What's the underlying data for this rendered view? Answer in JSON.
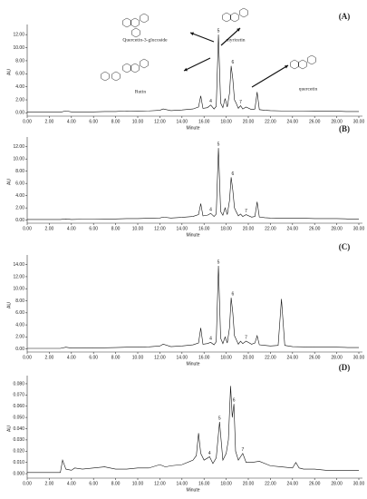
{
  "chart_data": [
    {
      "type": "line",
      "label": "(A)",
      "x_label": "Minute",
      "y_label": "AU",
      "color": "#111111",
      "xlim": [
        0,
        30
      ],
      "ylim": [
        -0.5,
        13
      ],
      "xticks": [
        {
          "value": 0,
          "label": "0.00"
        },
        {
          "value": 2,
          "label": "2.00"
        },
        {
          "value": 4,
          "label": "4.00"
        },
        {
          "value": 6,
          "label": "6.00"
        },
        {
          "value": 8,
          "label": "8.00"
        },
        {
          "value": 10,
          "label": "10.00"
        },
        {
          "value": 12,
          "label": "12.00"
        },
        {
          "value": 14,
          "label": "14.00"
        },
        {
          "value": 16,
          "label": "16.00"
        },
        {
          "value": 18,
          "label": "18.00"
        },
        {
          "value": 20,
          "label": "20.00"
        },
        {
          "value": 22,
          "label": "22.00"
        },
        {
          "value": 24,
          "label": "24.00"
        },
        {
          "value": 26,
          "label": "26.00"
        },
        {
          "value": 28,
          "label": "28.00"
        },
        {
          "value": 30,
          "label": "30.00"
        }
      ],
      "yticks": [
        {
          "value": 0,
          "label": "0.00"
        },
        {
          "value": 2,
          "label": "2.00"
        },
        {
          "value": 4,
          "label": "4.00"
        },
        {
          "value": 6,
          "label": "6.00"
        },
        {
          "value": 8,
          "label": "8.00"
        },
        {
          "value": 10,
          "label": "10.00"
        },
        {
          "value": 12,
          "label": "12.00"
        }
      ],
      "x": [
        0,
        1,
        2,
        3,
        3.5,
        4,
        5,
        6,
        7,
        8,
        9,
        10,
        11,
        12,
        12.3,
        13,
        14,
        15,
        15.5,
        15.7,
        15.9,
        16.3,
        16.6,
        16.9,
        17.1,
        17.3,
        17.5,
        17.7,
        17.9,
        18.1,
        18.3,
        18.45,
        18.6,
        18.75,
        18.9,
        19.1,
        19.3,
        19.5,
        19.8,
        20.3,
        20.6,
        20.8,
        21.0,
        21.5,
        22,
        23,
        24,
        25,
        26,
        27,
        28,
        29,
        30
      ],
      "values": [
        0.1,
        0.1,
        0.1,
        0.1,
        0.3,
        0.15,
        0.15,
        0.15,
        0.2,
        0.2,
        0.3,
        0.25,
        0.3,
        0.4,
        0.6,
        0.35,
        0.45,
        0.6,
        0.9,
        2.6,
        0.7,
        0.8,
        1.2,
        0.6,
        1.0,
        12.0,
        1.5,
        0.8,
        2.2,
        0.9,
        3.0,
        7.2,
        5.2,
        2.0,
        1.5,
        0.7,
        1.1,
        0.6,
        0.9,
        0.5,
        0.6,
        3.2,
        0.5,
        0.4,
        0.35,
        0.3,
        0.3,
        0.3,
        0.25,
        0.25,
        0.25,
        0.2,
        0.2
      ],
      "peak_labels": [
        {
          "label": "4",
          "x": 16.6
        },
        {
          "label": "5",
          "x": 17.3
        },
        {
          "label": "6",
          "x": 18.6
        },
        {
          "label": "7",
          "x": 19.3
        }
      ],
      "annotations": [
        "Quercetin-3-glucoside",
        "myricetin",
        "Rutin",
        "quercetin"
      ]
    },
    {
      "type": "line",
      "label": "(B)",
      "x_label": "Minute",
      "y_label": "AU",
      "color": "#111111",
      "xlim": [
        0,
        30
      ],
      "ylim": [
        -0.5,
        13
      ],
      "xticks": [
        {
          "value": 0,
          "label": "0.00"
        },
        {
          "value": 2,
          "label": "2.00"
        },
        {
          "value": 4,
          "label": "4.00"
        },
        {
          "value": 6,
          "label": "6.00"
        },
        {
          "value": 8,
          "label": "8.00"
        },
        {
          "value": 10,
          "label": "10.00"
        },
        {
          "value": 12,
          "label": "12.00"
        },
        {
          "value": 14,
          "label": "14.00"
        },
        {
          "value": 16,
          "label": "16.00"
        },
        {
          "value": 18,
          "label": "18.00"
        },
        {
          "value": 20,
          "label": "20.00"
        },
        {
          "value": 22,
          "label": "22.00"
        },
        {
          "value": 24,
          "label": "24.00"
        },
        {
          "value": 26,
          "label": "26.00"
        },
        {
          "value": 28,
          "label": "28.00"
        },
        {
          "value": 30,
          "label": "30.00"
        }
      ],
      "yticks": [
        {
          "value": 0,
          "label": "0.00"
        },
        {
          "value": 2,
          "label": "2.00"
        },
        {
          "value": 4,
          "label": "4.00"
        },
        {
          "value": 6,
          "label": "6.00"
        },
        {
          "value": 8,
          "label": "8.00"
        },
        {
          "value": 10,
          "label": "10.00"
        },
        {
          "value": 12,
          "label": "12.00"
        }
      ],
      "x": [
        0,
        1,
        2,
        3,
        3.5,
        4,
        5,
        6,
        7,
        8,
        9,
        10,
        11,
        12,
        12.3,
        13,
        14,
        15,
        15.5,
        15.7,
        15.9,
        16.3,
        16.6,
        16.9,
        17.1,
        17.3,
        17.5,
        17.7,
        17.9,
        18.1,
        18.3,
        18.45,
        18.6,
        18.75,
        18.9,
        19.1,
        19.3,
        19.5,
        19.8,
        20.3,
        20.6,
        20.8,
        21.0,
        21.5,
        22,
        23,
        24,
        25,
        26,
        27,
        28,
        29,
        30
      ],
      "values": [
        0.1,
        0.1,
        0.1,
        0.1,
        0.2,
        0.1,
        0.15,
        0.15,
        0.2,
        0.2,
        0.25,
        0.25,
        0.3,
        0.35,
        0.5,
        0.35,
        0.45,
        0.6,
        0.9,
        2.7,
        0.7,
        0.8,
        1.1,
        0.6,
        1.0,
        11.8,
        1.4,
        0.8,
        2.0,
        0.9,
        3.2,
        7.0,
        4.9,
        2.0,
        1.4,
        0.7,
        1.0,
        0.6,
        0.9,
        0.5,
        0.6,
        3.0,
        0.5,
        0.4,
        0.35,
        0.3,
        0.3,
        0.3,
        0.25,
        0.25,
        0.25,
        0.2,
        0.2
      ],
      "peak_labels": [
        {
          "label": "4",
          "x": 16.6
        },
        {
          "label": "5",
          "x": 17.3
        },
        {
          "label": "6",
          "x": 18.6
        },
        {
          "label": "7",
          "x": 19.8
        }
      ]
    },
    {
      "type": "line",
      "label": "(C)",
      "x_label": "Minute",
      "y_label": "AU",
      "color": "#111111",
      "xlim": [
        0,
        30
      ],
      "ylim": [
        -0.5,
        15
      ],
      "xticks": [
        {
          "value": 0,
          "label": "0.00"
        },
        {
          "value": 2,
          "label": "2.00"
        },
        {
          "value": 4,
          "label": "4.00"
        },
        {
          "value": 6,
          "label": "6.00"
        },
        {
          "value": 8,
          "label": "8.00"
        },
        {
          "value": 10,
          "label": "10.00"
        },
        {
          "value": 12,
          "label": "12.00"
        },
        {
          "value": 14,
          "label": "14.00"
        },
        {
          "value": 16,
          "label": "16.00"
        },
        {
          "value": 18,
          "label": "18.00"
        },
        {
          "value": 20,
          "label": "20.00"
        },
        {
          "value": 22,
          "label": "22.00"
        },
        {
          "value": 24,
          "label": "24.00"
        },
        {
          "value": 26,
          "label": "26.00"
        },
        {
          "value": 28,
          "label": "28.00"
        },
        {
          "value": 30,
          "label": "30.00"
        }
      ],
      "yticks": [
        {
          "value": 0,
          "label": "0.00"
        },
        {
          "value": 2,
          "label": "2.00"
        },
        {
          "value": 4,
          "label": "4.00"
        },
        {
          "value": 6,
          "label": "6.00"
        },
        {
          "value": 8,
          "label": "8.00"
        },
        {
          "value": 10,
          "label": "10.00"
        },
        {
          "value": 12,
          "label": "12.00"
        },
        {
          "value": 14,
          "label": "14.00"
        }
      ],
      "x": [
        0,
        1,
        2,
        3,
        3.5,
        4,
        5,
        6,
        7,
        8,
        9,
        10,
        11,
        12,
        12.3,
        13,
        14,
        15,
        15.5,
        15.7,
        15.9,
        16.3,
        16.6,
        16.9,
        17.1,
        17.3,
        17.5,
        17.7,
        17.9,
        18.1,
        18.3,
        18.45,
        18.6,
        18.75,
        18.9,
        19.1,
        19.3,
        19.5,
        19.8,
        20.3,
        20.6,
        20.8,
        21.0,
        21.5,
        22,
        22.7,
        23,
        23.3,
        24,
        25,
        26,
        27,
        28,
        29,
        30
      ],
      "values": [
        0.1,
        0.1,
        0.1,
        0.1,
        0.3,
        0.15,
        0.15,
        0.2,
        0.2,
        0.25,
        0.3,
        0.3,
        0.35,
        0.5,
        0.8,
        0.4,
        0.5,
        0.7,
        1.0,
        3.5,
        0.8,
        0.9,
        1.1,
        0.7,
        1.2,
        13.8,
        1.8,
        0.9,
        2.0,
        1.0,
        3.5,
        8.5,
        6.0,
        2.2,
        1.6,
        0.8,
        1.3,
        0.9,
        1.3,
        0.8,
        1.0,
        2.2,
        0.7,
        0.6,
        0.5,
        0.6,
        8.3,
        0.6,
        0.4,
        0.35,
        0.3,
        0.3,
        0.3,
        0.25,
        0.25
      ],
      "peak_labels": [
        {
          "label": "4",
          "x": 16.6
        },
        {
          "label": "5",
          "x": 17.3
        },
        {
          "label": "6",
          "x": 18.6
        },
        {
          "label": "7",
          "x": 19.8
        }
      ]
    },
    {
      "type": "line",
      "label": "(D)",
      "x_label": "Minute",
      "y_label": "AU",
      "color": "#111111",
      "xlim": [
        0,
        30
      ],
      "ylim": [
        -0.004,
        0.084
      ],
      "xticks": [
        {
          "value": 0,
          "label": "0.00"
        },
        {
          "value": 2,
          "label": "2.00"
        },
        {
          "value": 4,
          "label": "4.00"
        },
        {
          "value": 6,
          "label": "6.00"
        },
        {
          "value": 8,
          "label": "8.00"
        },
        {
          "value": 10,
          "label": "10.00"
        },
        {
          "value": 12,
          "label": "12.00"
        },
        {
          "value": 14,
          "label": "14.00"
        },
        {
          "value": 16,
          "label": "16.00"
        },
        {
          "value": 18,
          "label": "18.00"
        },
        {
          "value": 20,
          "label": "20.00"
        },
        {
          "value": 22,
          "label": "22.00"
        },
        {
          "value": 24,
          "label": "24.00"
        },
        {
          "value": 26,
          "label": "26.00"
        },
        {
          "value": 28,
          "label": "28.00"
        },
        {
          "value": 30,
          "label": "30.00"
        }
      ],
      "yticks": [
        {
          "value": 0,
          "label": "0.000"
        },
        {
          "value": 0.01,
          "label": "0.010"
        },
        {
          "value": 0.02,
          "label": "0.020"
        },
        {
          "value": 0.03,
          "label": "0.030"
        },
        {
          "value": 0.04,
          "label": "0.040"
        },
        {
          "value": 0.05,
          "label": "0.050"
        },
        {
          "value": 0.06,
          "label": "0.060"
        },
        {
          "value": 0.07,
          "label": "0.070"
        },
        {
          "value": 0.08,
          "label": "0.080"
        }
      ],
      "x": [
        0,
        1,
        2,
        3,
        3.2,
        3.5,
        4,
        4.3,
        5,
        6,
        7,
        8,
        9,
        10,
        11,
        12,
        12.5,
        13,
        14,
        15,
        15.3,
        15.5,
        15.7,
        16,
        16.5,
        16.8,
        17.1,
        17.4,
        17.7,
        18,
        18.2,
        18.4,
        18.55,
        18.7,
        18.85,
        19.1,
        19.5,
        19.8,
        20.3,
        21,
        21.5,
        22,
        23,
        24,
        24.3,
        24.6,
        25,
        26,
        27,
        28,
        29,
        30
      ],
      "values": [
        0.001,
        0.001,
        0.001,
        0.001,
        0.012,
        0.004,
        0.003,
        0.005,
        0.004,
        0.005,
        0.006,
        0.004,
        0.004,
        0.005,
        0.005,
        0.008,
        0.006,
        0.007,
        0.008,
        0.012,
        0.016,
        0.036,
        0.018,
        0.012,
        0.015,
        0.009,
        0.014,
        0.046,
        0.012,
        0.018,
        0.03,
        0.078,
        0.05,
        0.062,
        0.02,
        0.012,
        0.018,
        0.01,
        0.01,
        0.011,
        0.009,
        0.007,
        0.006,
        0.005,
        0.01,
        0.005,
        0.004,
        0.004,
        0.003,
        0.003,
        0.003,
        0.003
      ],
      "peak_labels": [
        {
          "label": "4",
          "x": 16.5
        },
        {
          "label": "5",
          "x": 17.4
        },
        {
          "label": "6",
          "x": 18.7
        },
        {
          "label": "7",
          "x": 19.5
        }
      ]
    }
  ]
}
